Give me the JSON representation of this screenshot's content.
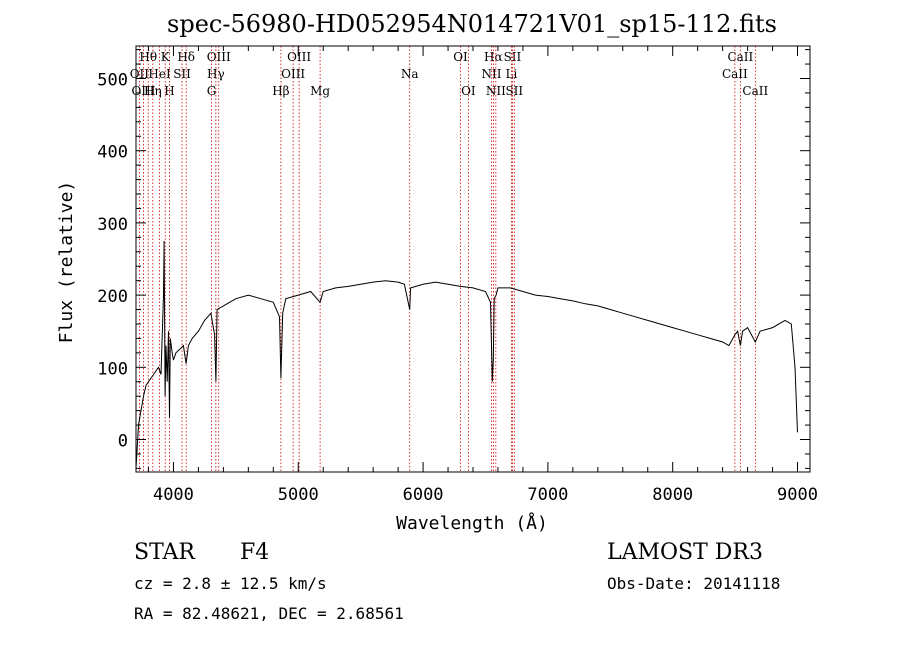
{
  "chart_data": {
    "type": "line",
    "title": "spec-56980-HD052954N014721V01_sp15-112.fits",
    "xlabel": "Wavelength (Å)",
    "ylabel": "Flux (relative)",
    "xlim": [
      3700,
      9100
    ],
    "ylim": [
      -45,
      545
    ],
    "xticks": [
      4000,
      5000,
      6000,
      7000,
      8000,
      9000
    ],
    "yticks": [
      0,
      100,
      200,
      300,
      400,
      500
    ],
    "grid": false,
    "series": [
      {
        "name": "flux",
        "x": [
          3700,
          3720,
          3740,
          3760,
          3780,
          3800,
          3820,
          3840,
          3860,
          3880,
          3900,
          3920,
          3925,
          3933,
          3940,
          3950,
          3960,
          3968,
          3975,
          3990,
          4000,
          4020,
          4050,
          4080,
          4101,
          4120,
          4150,
          4200,
          4250,
          4300,
          4330,
          4340,
          4350,
          4400,
          4450,
          4500,
          4600,
          4700,
          4800,
          4850,
          4861,
          4875,
          4900,
          5000,
          5100,
          5175,
          5200,
          5300,
          5400,
          5500,
          5600,
          5700,
          5800,
          5850,
          5893,
          5900,
          6000,
          6100,
          6200,
          6300,
          6400,
          6500,
          6540,
          6555,
          6563,
          6570,
          6585,
          6600,
          6700,
          6800,
          6900,
          7000,
          7100,
          7200,
          7300,
          7400,
          7500,
          7600,
          7700,
          7800,
          7900,
          8000,
          8100,
          8200,
          8300,
          8400,
          8450,
          8498,
          8520,
          8542,
          8560,
          8600,
          8662,
          8700,
          8800,
          8900,
          8950,
          8980,
          9000
        ],
        "values": [
          -40,
          20,
          40,
          60,
          75,
          80,
          85,
          90,
          95,
          100,
          90,
          200,
          275,
          60,
          130,
          80,
          150,
          30,
          140,
          120,
          110,
          120,
          125,
          130,
          105,
          130,
          140,
          150,
          165,
          175,
          145,
          80,
          180,
          185,
          190,
          195,
          200,
          195,
          190,
          170,
          85,
          175,
          195,
          200,
          205,
          190,
          205,
          210,
          212,
          215,
          218,
          220,
          218,
          215,
          180,
          210,
          215,
          218,
          215,
          212,
          210,
          205,
          190,
          80,
          110,
          195,
          200,
          210,
          210,
          205,
          200,
          198,
          195,
          192,
          188,
          185,
          180,
          175,
          170,
          165,
          160,
          155,
          150,
          145,
          140,
          135,
          130,
          145,
          150,
          130,
          150,
          155,
          135,
          150,
          155,
          165,
          160,
          100,
          10
        ]
      }
    ],
    "lines": [
      {
        "name": "Hθ",
        "x": 3798,
        "row": 1
      },
      {
        "name": "OII",
        "x": 3727,
        "row": 2
      },
      {
        "name": "OIII",
        "x": 3760,
        "row": 3
      },
      {
        "name": "HeI",
        "x": 3889,
        "row": 2
      },
      {
        "name": "Hη",
        "x": 3835,
        "row": 3
      },
      {
        "name": "K",
        "x": 3934,
        "row": 1
      },
      {
        "name": "SII",
        "x": 4069,
        "row": 2
      },
      {
        "name": "H",
        "x": 3968,
        "row": 3
      },
      {
        "name": "Hδ",
        "x": 4102,
        "row": 1
      },
      {
        "name": "OIII",
        "x": 4363,
        "row": 1
      },
      {
        "name": "Hγ",
        "x": 4340,
        "row": 2
      },
      {
        "name": "G",
        "x": 4305,
        "row": 3
      },
      {
        "name": "Hβ",
        "x": 4861,
        "row": 3
      },
      {
        "name": "OIII",
        "x": 5007,
        "row": 1
      },
      {
        "name": "OIII",
        "x": 4959,
        "row": 2
      },
      {
        "name": "Mg",
        "x": 5175,
        "row": 3
      },
      {
        "name": "Na",
        "x": 5893,
        "row": 2
      },
      {
        "name": "OI",
        "x": 6300,
        "row": 1
      },
      {
        "name": "OI",
        "x": 6363,
        "row": 3
      },
      {
        "name": "Hα",
        "x": 6563,
        "row": 1
      },
      {
        "name": "NII",
        "x": 6548,
        "row": 2
      },
      {
        "name": "NII",
        "x": 6583,
        "row": 3
      },
      {
        "name": "SII",
        "x": 6716,
        "row": 1
      },
      {
        "name": "Li",
        "x": 6708,
        "row": 2
      },
      {
        "name": "SII",
        "x": 6731,
        "row": 3
      },
      {
        "name": "CaII",
        "x": 8542,
        "row": 1
      },
      {
        "name": "CaII",
        "x": 8498,
        "row": 2
      },
      {
        "name": "CaII",
        "x": 8662,
        "row": 3
      }
    ]
  },
  "info": {
    "object_class": "STAR",
    "subclass": "F4",
    "survey": "LAMOST DR3",
    "cz": "cz = 2.8 ± 12.5 km/s",
    "obs_date": "Obs-Date: 20141118",
    "coords": "RA =  82.48621, DEC =    2.68561"
  },
  "colors": {
    "line_marker": "#cc0000",
    "spectrum": "#000000"
  }
}
